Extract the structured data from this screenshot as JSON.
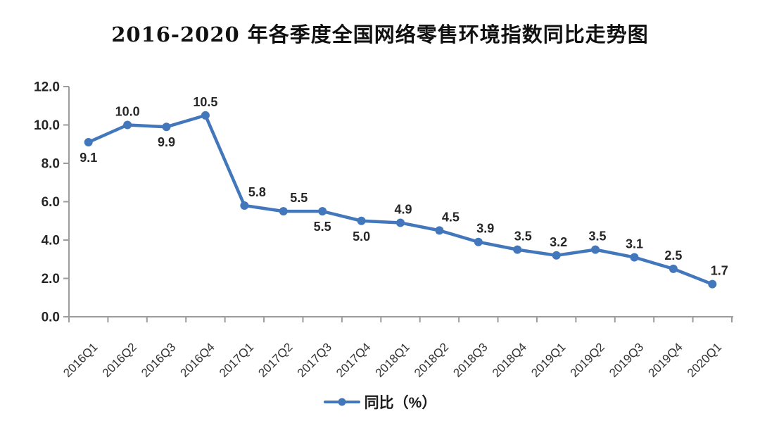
{
  "chart_data": {
    "type": "line",
    "title": "2016-2020 年各季度全国网络零售环境指数同比走势图",
    "categories": [
      "2016Q1",
      "2016Q2",
      "2016Q3",
      "2016Q4",
      "2017Q1",
      "2017Q2",
      "2017Q3",
      "2017Q4",
      "2018Q1",
      "2018Q2",
      "2018Q3",
      "2018Q4",
      "2019Q1",
      "2019Q2",
      "2019Q3",
      "2019Q4",
      "2020Q1"
    ],
    "series": [
      {
        "name": "同比（%）",
        "values": [
          9.1,
          10.0,
          9.9,
          10.5,
          5.8,
          5.5,
          5.5,
          5.0,
          4.9,
          4.5,
          3.9,
          3.5,
          3.2,
          3.5,
          3.1,
          2.5,
          1.7
        ]
      }
    ],
    "xlabel": "",
    "ylabel": "",
    "ylim": [
      0,
      12
    ],
    "ytick_step": 2,
    "ytick_labels": [
      "0.0",
      "2.0",
      "4.0",
      "6.0",
      "8.0",
      "10.0",
      "12.0"
    ],
    "grid": false,
    "legend_position": "bottom",
    "data_labels_decimals": 1,
    "label_positions": [
      "below",
      "above",
      "below",
      "above",
      "above",
      "above",
      "below",
      "below",
      "above",
      "above",
      "above",
      "above",
      "above",
      "above",
      "above",
      "above",
      "above"
    ],
    "label_dx": [
      0,
      0,
      0,
      0,
      18,
      22,
      0,
      0,
      4,
      16,
      10,
      8,
      3,
      3,
      0,
      0,
      10
    ],
    "colors": {
      "line": "#4377bc",
      "marker": "#4377bc",
      "axis": "#9c9c9c",
      "data_label": "#262626",
      "tick_label": "#262626"
    }
  }
}
